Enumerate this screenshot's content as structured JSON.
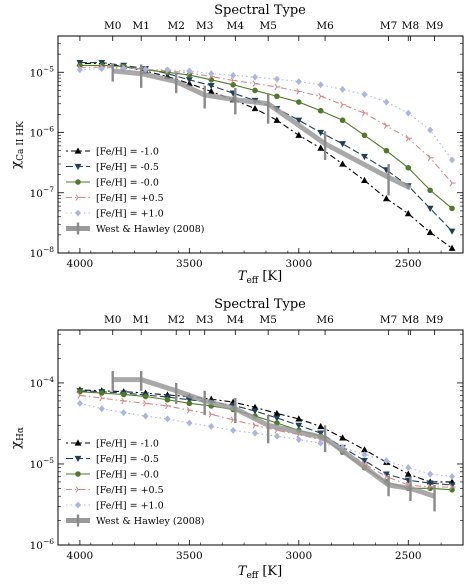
{
  "chart_data": [
    {
      "type": "line",
      "top_title": "Spectral Type",
      "top_ticks": [
        {
          "label": "M0",
          "teff": 3850
        },
        {
          "label": "M1",
          "teff": 3720
        },
        {
          "label": "M2",
          "teff": 3560
        },
        {
          "label": "M3",
          "teff": 3430
        },
        {
          "label": "M4",
          "teff": 3290
        },
        {
          "label": "M5",
          "teff": 3140
        },
        {
          "label": "M6",
          "teff": 2880
        },
        {
          "label": "M7",
          "teff": 2590
        },
        {
          "label": "M8",
          "teff": 2490
        },
        {
          "label": "M9",
          "teff": 2380
        }
      ],
      "xlabel_main": "T",
      "xlabel_sub": "eff",
      "xlabel_unit": " [K]",
      "ylabel_main": "χ",
      "ylabel_sub": "Ca II HK",
      "xlim": [
        4100,
        2250
      ],
      "ylim": [
        1e-08,
        4e-05
      ],
      "y_log": true,
      "x_ticks": [
        4000,
        3500,
        3000,
        2500
      ],
      "x_tick_labels": [
        "4000",
        "3500",
        "3000",
        "2500"
      ],
      "y_ticks": [
        1e-08,
        1e-07,
        1e-06,
        1e-05
      ],
      "y_tick_labels": [
        "10",
        "10",
        "10",
        "10"
      ],
      "y_tick_exps": [
        "−8",
        "−7",
        "−6",
        "−5"
      ],
      "legend_position": "lower-left",
      "series": [
        {
          "name": "[Fe/H] = -1.0",
          "color": "#000000",
          "marker": "triangle-up",
          "dash": "2,3,6,3",
          "x": [
            4000,
            3900,
            3800,
            3700,
            3600,
            3500,
            3400,
            3300,
            3200,
            3100,
            3000,
            2900,
            2800,
            2700,
            2600,
            2500,
            2400,
            2300
          ],
          "y": [
            1.4e-05,
            1.4e-05,
            1.25e-05,
            1.05e-05,
            8.5e-06,
            6.5e-06,
            4.8e-06,
            3.5e-06,
            2.5e-06,
            1.6e-06,
            9e-07,
            5.5e-07,
            3e-07,
            1.6e-07,
            8e-08,
            4.5e-08,
            2.2e-08,
            1.2e-08
          ]
        },
        {
          "name": "[Fe/H] = -0.5",
          "color": "#1f3f5a",
          "marker": "triangle-down",
          "dash": "7,3",
          "x": [
            4000,
            3900,
            3800,
            3700,
            3600,
            3500,
            3400,
            3300,
            3200,
            3100,
            3000,
            2900,
            2800,
            2700,
            2600,
            2500,
            2400,
            2300
          ],
          "y": [
            1.45e-05,
            1.45e-05,
            1.3e-05,
            1.15e-05,
            9.5e-06,
            7.5e-06,
            6e-06,
            4.5e-06,
            3.4e-06,
            2.5e-06,
            1.6e-06,
            1e-06,
            6.5e-07,
            4e-07,
            2.4e-07,
            1.3e-07,
            5.5e-08,
            2.3e-08
          ]
        },
        {
          "name": "[Fe/H] = -0.0",
          "color": "#4f7a2a",
          "marker": "circle",
          "dash": "",
          "x": [
            4000,
            3900,
            3800,
            3700,
            3600,
            3500,
            3400,
            3300,
            3200,
            3100,
            3000,
            2900,
            2800,
            2700,
            2600,
            2500,
            2400,
            2300
          ],
          "y": [
            1.3e-05,
            1.3e-05,
            1.25e-05,
            1.1e-05,
            1e-05,
            9e-06,
            7.5e-06,
            6.2e-06,
            5e-06,
            4e-06,
            3.2e-06,
            2.3e-06,
            1.6e-06,
            9e-07,
            5e-07,
            2.6e-07,
            1.1e-07,
            5.5e-08
          ]
        },
        {
          "name": "[Fe/H] = +0.5",
          "color": "#d9868a",
          "marker": "tri-right",
          "dash": "6,3,1.5,3",
          "x": [
            4000,
            3900,
            3800,
            3700,
            3600,
            3500,
            3400,
            3300,
            3200,
            3100,
            3000,
            2900,
            2800,
            2700,
            2600,
            2500,
            2400,
            2300
          ],
          "y": [
            1.2e-05,
            1.22e-05,
            1.2e-05,
            1.12e-05,
            1.05e-05,
            9.8e-06,
            8.5e-06,
            7.3e-06,
            6.5e-06,
            5.7e-06,
            4.8e-06,
            4e-06,
            2.9e-06,
            2.1e-06,
            1.3e-06,
            8e-07,
            3.8e-07,
            1.45e-07
          ]
        },
        {
          "name": "[Fe/H] = +1.0",
          "color": "#aab5e6",
          "marker": "diamond",
          "dash": "1.5,3",
          "x": [
            4000,
            3900,
            3800,
            3700,
            3600,
            3500,
            3400,
            3300,
            3200,
            3100,
            3000,
            2900,
            2800,
            2700,
            2600,
            2500,
            2400,
            2300
          ],
          "y": [
            1.1e-05,
            1.15e-05,
            1.15e-05,
            1.12e-05,
            1.1e-05,
            1.05e-05,
            9.5e-06,
            8.9e-06,
            8.3e-06,
            7.7e-06,
            7e-06,
            6.2e-06,
            5.2e-06,
            4.3e-06,
            3.2e-06,
            2.1e-06,
            1.1e-06,
            3.5e-07
          ]
        },
        {
          "name": "West & Hawley (2008)",
          "color": "#9a9a9a",
          "marker": "errorbar",
          "dash": "",
          "x": [
            3850,
            3720,
            3560,
            3430,
            3290,
            3140,
            2880,
            2590,
            2490
          ],
          "y": [
            1.05e-05,
            9.5e-06,
            7e-06,
            4.2e-06,
            3.5e-06,
            3e-06,
            6.5e-07,
            1.8e-07,
            1.2e-07
          ],
          "ylo": [
            7e-06,
            5.5e-06,
            4.5e-06,
            2.5e-06,
            2e-06,
            1.4e-06,
            3.5e-07,
            9e-08,
            null
          ],
          "yhi": [
            1.4e-05,
            1.35e-05,
            1e-05,
            6e-06,
            5.5e-06,
            4.5e-06,
            1.05e-06,
            3e-07,
            null
          ]
        }
      ]
    },
    {
      "type": "line",
      "top_title": "Spectral Type",
      "top_ticks": [
        {
          "label": "M0",
          "teff": 3850
        },
        {
          "label": "M1",
          "teff": 3720
        },
        {
          "label": "M2",
          "teff": 3560
        },
        {
          "label": "M3",
          "teff": 3430
        },
        {
          "label": "M4",
          "teff": 3290
        },
        {
          "label": "M5",
          "teff": 3140
        },
        {
          "label": "M6",
          "teff": 2880
        },
        {
          "label": "M7",
          "teff": 2590
        },
        {
          "label": "M8",
          "teff": 2490
        },
        {
          "label": "M9",
          "teff": 2380
        }
      ],
      "xlabel_main": "T",
      "xlabel_sub": "eff",
      "xlabel_unit": " [K]",
      "ylabel_main": "χ",
      "ylabel_sub": "Hα",
      "xlim": [
        4100,
        2250
      ],
      "ylim": [
        1e-06,
        0.00045
      ],
      "y_log": true,
      "x_ticks": [
        4000,
        3500,
        3000,
        2500
      ],
      "x_tick_labels": [
        "4000",
        "3500",
        "3000",
        "2500"
      ],
      "y_ticks": [
        1e-06,
        1e-05,
        0.0001
      ],
      "y_tick_labels": [
        "10",
        "10",
        "10"
      ],
      "y_tick_exps": [
        "−6",
        "−5",
        "−4"
      ],
      "legend_position": "lower-left",
      "series": [
        {
          "name": "[Fe/H] = -1.0",
          "color": "#000000",
          "marker": "triangle-up",
          "dash": "2,3,6,3",
          "x": [
            4000,
            3900,
            3800,
            3700,
            3600,
            3500,
            3400,
            3300,
            3200,
            3100,
            3000,
            2900,
            2800,
            2700,
            2600,
            2500,
            2400,
            2300
          ],
          "y": [
            8.2e-05,
            8e-05,
            7.8e-05,
            7.5e-05,
            7.1e-05,
            6.8e-05,
            6.3e-05,
            5.8e-05,
            5e-05,
            4.2e-05,
            3.6e-05,
            2.9e-05,
            2.1e-05,
            1.5e-05,
            1.05e-05,
            7.5e-06,
            6e-06,
            6e-06
          ]
        },
        {
          "name": "[Fe/H] = -0.5",
          "color": "#1f3f5a",
          "marker": "triangle-down",
          "dash": "7,3",
          "x": [
            4000,
            3900,
            3800,
            3700,
            3600,
            3500,
            3400,
            3300,
            3200,
            3100,
            3000,
            2900,
            2800,
            2700,
            2600,
            2500,
            2400,
            2300
          ],
          "y": [
            8e-05,
            7.8e-05,
            7.5e-05,
            7.1e-05,
            6.7e-05,
            6.2e-05,
            5.8e-05,
            5.3e-05,
            4.5e-05,
            3.7e-05,
            3e-05,
            2.4e-05,
            1.6e-05,
            1.1e-05,
            7.5e-06,
            6.3e-06,
            5.8e-06,
            5.5e-06
          ]
        },
        {
          "name": "[Fe/H] = -0.0",
          "color": "#4f7a2a",
          "marker": "circle",
          "dash": "",
          "x": [
            4000,
            3900,
            3800,
            3700,
            3600,
            3500,
            3400,
            3300,
            3200,
            3100,
            3000,
            2900,
            2800,
            2700,
            2600,
            2500,
            2400,
            2300
          ],
          "y": [
            7.8e-05,
            7.5e-05,
            7.2e-05,
            6.8e-05,
            6.2e-05,
            5.6e-05,
            5.2e-05,
            4.7e-05,
            3.9e-05,
            3.2e-05,
            2.6e-05,
            2.2e-05,
            1.4e-05,
            9e-06,
            6e-06,
            5e-06,
            5e-06,
            4.8e-06
          ]
        },
        {
          "name": "[Fe/H] = +0.5",
          "color": "#d9868a",
          "marker": "tri-right",
          "dash": "6,3,1.5,3",
          "x": [
            4000,
            3900,
            3800,
            3700,
            3600,
            3500,
            3400,
            3300,
            3200,
            3100,
            3000,
            2900,
            2800,
            2700,
            2600,
            2500,
            2400,
            2300
          ],
          "y": [
            7e-05,
            6.5e-05,
            6e-05,
            5.6e-05,
            5.2e-05,
            4.6e-05,
            4.1e-05,
            3.5e-05,
            3e-05,
            2.6e-05,
            2.3e-05,
            2e-05,
            1.5e-05,
            1e-05,
            7e-06,
            5.5e-06,
            5.2e-06,
            5.2e-06
          ]
        },
        {
          "name": "[Fe/H] = +1.0",
          "color": "#aab5e6",
          "marker": "diamond",
          "dash": "1.5,3",
          "x": [
            4000,
            3900,
            3800,
            3700,
            3600,
            3500,
            3400,
            3300,
            3200,
            3100,
            3000,
            2900,
            2800,
            2700,
            2600,
            2500,
            2400,
            2300
          ],
          "y": [
            5.6e-05,
            4.8e-05,
            4.3e-05,
            3.9e-05,
            3.6e-05,
            3.2e-05,
            2.9e-05,
            2.6e-05,
            2.4e-05,
            2.2e-05,
            2e-05,
            1.8e-05,
            1.6e-05,
            1.3e-05,
            1.1e-05,
            9e-06,
            7.5e-06,
            7e-06
          ]
        },
        {
          "name": "West & Hawley (2008)",
          "color": "#9a9a9a",
          "marker": "errorbar",
          "dash": "",
          "x": [
            3850,
            3720,
            3560,
            3430,
            3290,
            3140,
            2880,
            2590,
            2490,
            2380
          ],
          "y": [
            0.00011,
            0.00011,
            8e-05,
            6e-05,
            4.8e-05,
            3e-05,
            2.1e-05,
            5.5e-06,
            5e-06,
            4e-06
          ],
          "ylo": [
            8e-05,
            8e-05,
            5.5e-05,
            4e-05,
            3.2e-05,
            1.8e-05,
            1.4e-05,
            4e-06,
            3.5e-06,
            2.6e-06
          ],
          "yhi": [
            0.00014,
            0.00014,
            0.0001,
            8e-05,
            6.5e-05,
            4e-05,
            3e-05,
            7e-06,
            7e-06,
            5.5e-06
          ]
        }
      ]
    }
  ]
}
